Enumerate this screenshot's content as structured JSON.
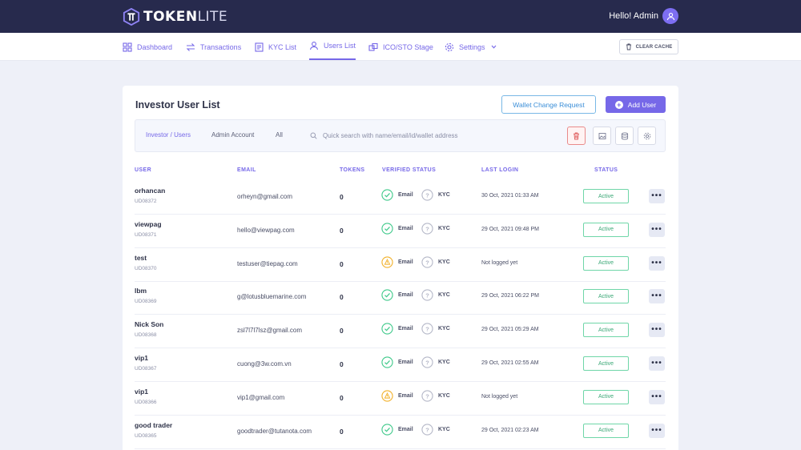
{
  "brand": {
    "name_bold": "TOKEN",
    "name_thin": "LITE"
  },
  "header": {
    "greeting": "Hello! Admin"
  },
  "nav": [
    {
      "label": "Dashboard",
      "icon": "grid-icon"
    },
    {
      "label": "Transactions",
      "icon": "transfer-icon"
    },
    {
      "label": "KYC List",
      "icon": "document-icon"
    },
    {
      "label": "Users List",
      "icon": "users-icon",
      "active": true
    },
    {
      "label": "ICO/STO Stage",
      "icon": "layers-icon"
    },
    {
      "label": "Settings",
      "icon": "gear-icon"
    }
  ],
  "toolbar": {
    "clear_cache": "CLEAR CACHE"
  },
  "page": {
    "title": "Investor User List",
    "wallet_button": "Wallet Change Request",
    "add_button": "Add User"
  },
  "filters": {
    "tabs": [
      "Investor / Users",
      "Admin Account",
      "All"
    ],
    "search_placeholder": "Quick search with name/email/id/wallet address"
  },
  "table": {
    "headers": {
      "user": "USER",
      "email": "EMAIL",
      "tokens": "TOKENS",
      "verified": "VERIFIED STATUS",
      "last_login": "LAST LOGIN",
      "status": "STATUS"
    },
    "email_label": "Email",
    "kyc_label": "KYC",
    "rows": [
      {
        "name": "orhancan",
        "id": "UD08372",
        "email": "orheyn@gmail.com",
        "tokens": "0",
        "email_verified": "verified",
        "last_login": "30 Oct, 2021 01:33 AM",
        "status": "Active"
      },
      {
        "name": "viewpag",
        "id": "UD08371",
        "email": "hello@viewpag.com",
        "tokens": "0",
        "email_verified": "verified",
        "last_login": "29 Oct, 2021 09:48 PM",
        "status": "Active"
      },
      {
        "name": "test",
        "id": "UD08370",
        "email": "testuser@tiepag.com",
        "tokens": "0",
        "email_verified": "pending",
        "last_login": "Not logged yet",
        "status": "Active"
      },
      {
        "name": "lbm",
        "id": "UD08369",
        "email": "g@lotusbluemarine.com",
        "tokens": "0",
        "email_verified": "verified",
        "last_login": "29 Oct, 2021 06:22 PM",
        "status": "Active"
      },
      {
        "name": "Nick Son",
        "id": "UD08368",
        "email": "zsl7l7l7lsz@gmail.com",
        "tokens": "0",
        "email_verified": "verified",
        "last_login": "29 Oct, 2021 05:29 AM",
        "status": "Active"
      },
      {
        "name": "vip1",
        "id": "UD08367",
        "email": "cuong@3w.com.vn",
        "tokens": "0",
        "email_verified": "verified",
        "last_login": "29 Oct, 2021 02:55 AM",
        "status": "Active"
      },
      {
        "name": "vip1",
        "id": "UD08366",
        "email": "vip1@gmail.com",
        "tokens": "0",
        "email_verified": "pending",
        "last_login": "Not logged yet",
        "status": "Active"
      },
      {
        "name": "good trader",
        "id": "UD08365",
        "email": "goodtrader@tutanota.com",
        "tokens": "0",
        "email_verified": "verified",
        "last_login": "29 Oct, 2021 02:23 AM",
        "status": "Active"
      }
    ]
  },
  "colors": {
    "accent": "#7668e8",
    "topbar": "#272a4d",
    "verified": "#3fc98a",
    "pending": "#f2b12b",
    "unverified": "#b5b8c8"
  }
}
